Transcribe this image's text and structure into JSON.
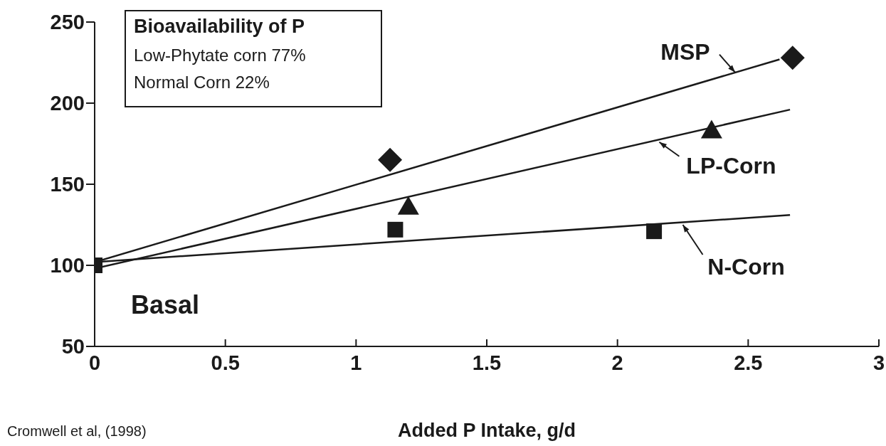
{
  "chart_data": {
    "type": "scatter",
    "xlabel": "Added P Intake, g/d",
    "xlim": [
      0,
      3
    ],
    "xticks": [
      0,
      0.5,
      1,
      1.5,
      2,
      2.5,
      3
    ],
    "ylim": [
      50,
      250
    ],
    "yticks": [
      50,
      100,
      150,
      200,
      250
    ],
    "grid": false,
    "legend": false,
    "series": [
      {
        "marker": "diamond",
        "color": "#1a1a1a",
        "x": [
          1.13,
          2.67
        ],
        "values": [
          165,
          228
        ]
      },
      {
        "marker": "triangle",
        "color": "#1a1a1a",
        "x": [
          1.2,
          2.36
        ],
        "values": [
          137,
          184
        ]
      },
      {
        "marker": "square",
        "color": "#1a1a1a",
        "x": [
          0,
          1.15,
          2.14
        ],
        "values": [
          100,
          122,
          121
        ]
      },
      {
        "type": "line",
        "marker": "none",
        "line_style": "solid",
        "color": "#1a1a1a",
        "x": [
          0,
          2.62
        ],
        "values": [
          102,
          227
        ]
      },
      {
        "type": "line",
        "marker": "none",
        "line_style": "solid",
        "color": "#1a1a1a",
        "x": [
          0,
          2.66
        ],
        "values": [
          98,
          196
        ]
      },
      {
        "type": "line",
        "marker": "none",
        "line_style": "solid",
        "color": "#1a1a1a",
        "x": [
          0,
          2.66
        ],
        "values": [
          102,
          131
        ]
      }
    ],
    "annotations": [
      "Bioavailability of P",
      "Low-Phytate corn 77%",
      "Normal Corn 22%",
      "Basal",
      {
        "text": "MSP",
        "x": 2.45,
        "y": 219
      },
      {
        "text": "LP-Corn",
        "x": 2.16,
        "y": 176
      },
      {
        "text": "N-Corn",
        "x": 2.25,
        "y": 125
      },
      "Cromwell et al, (1998)"
    ]
  }
}
